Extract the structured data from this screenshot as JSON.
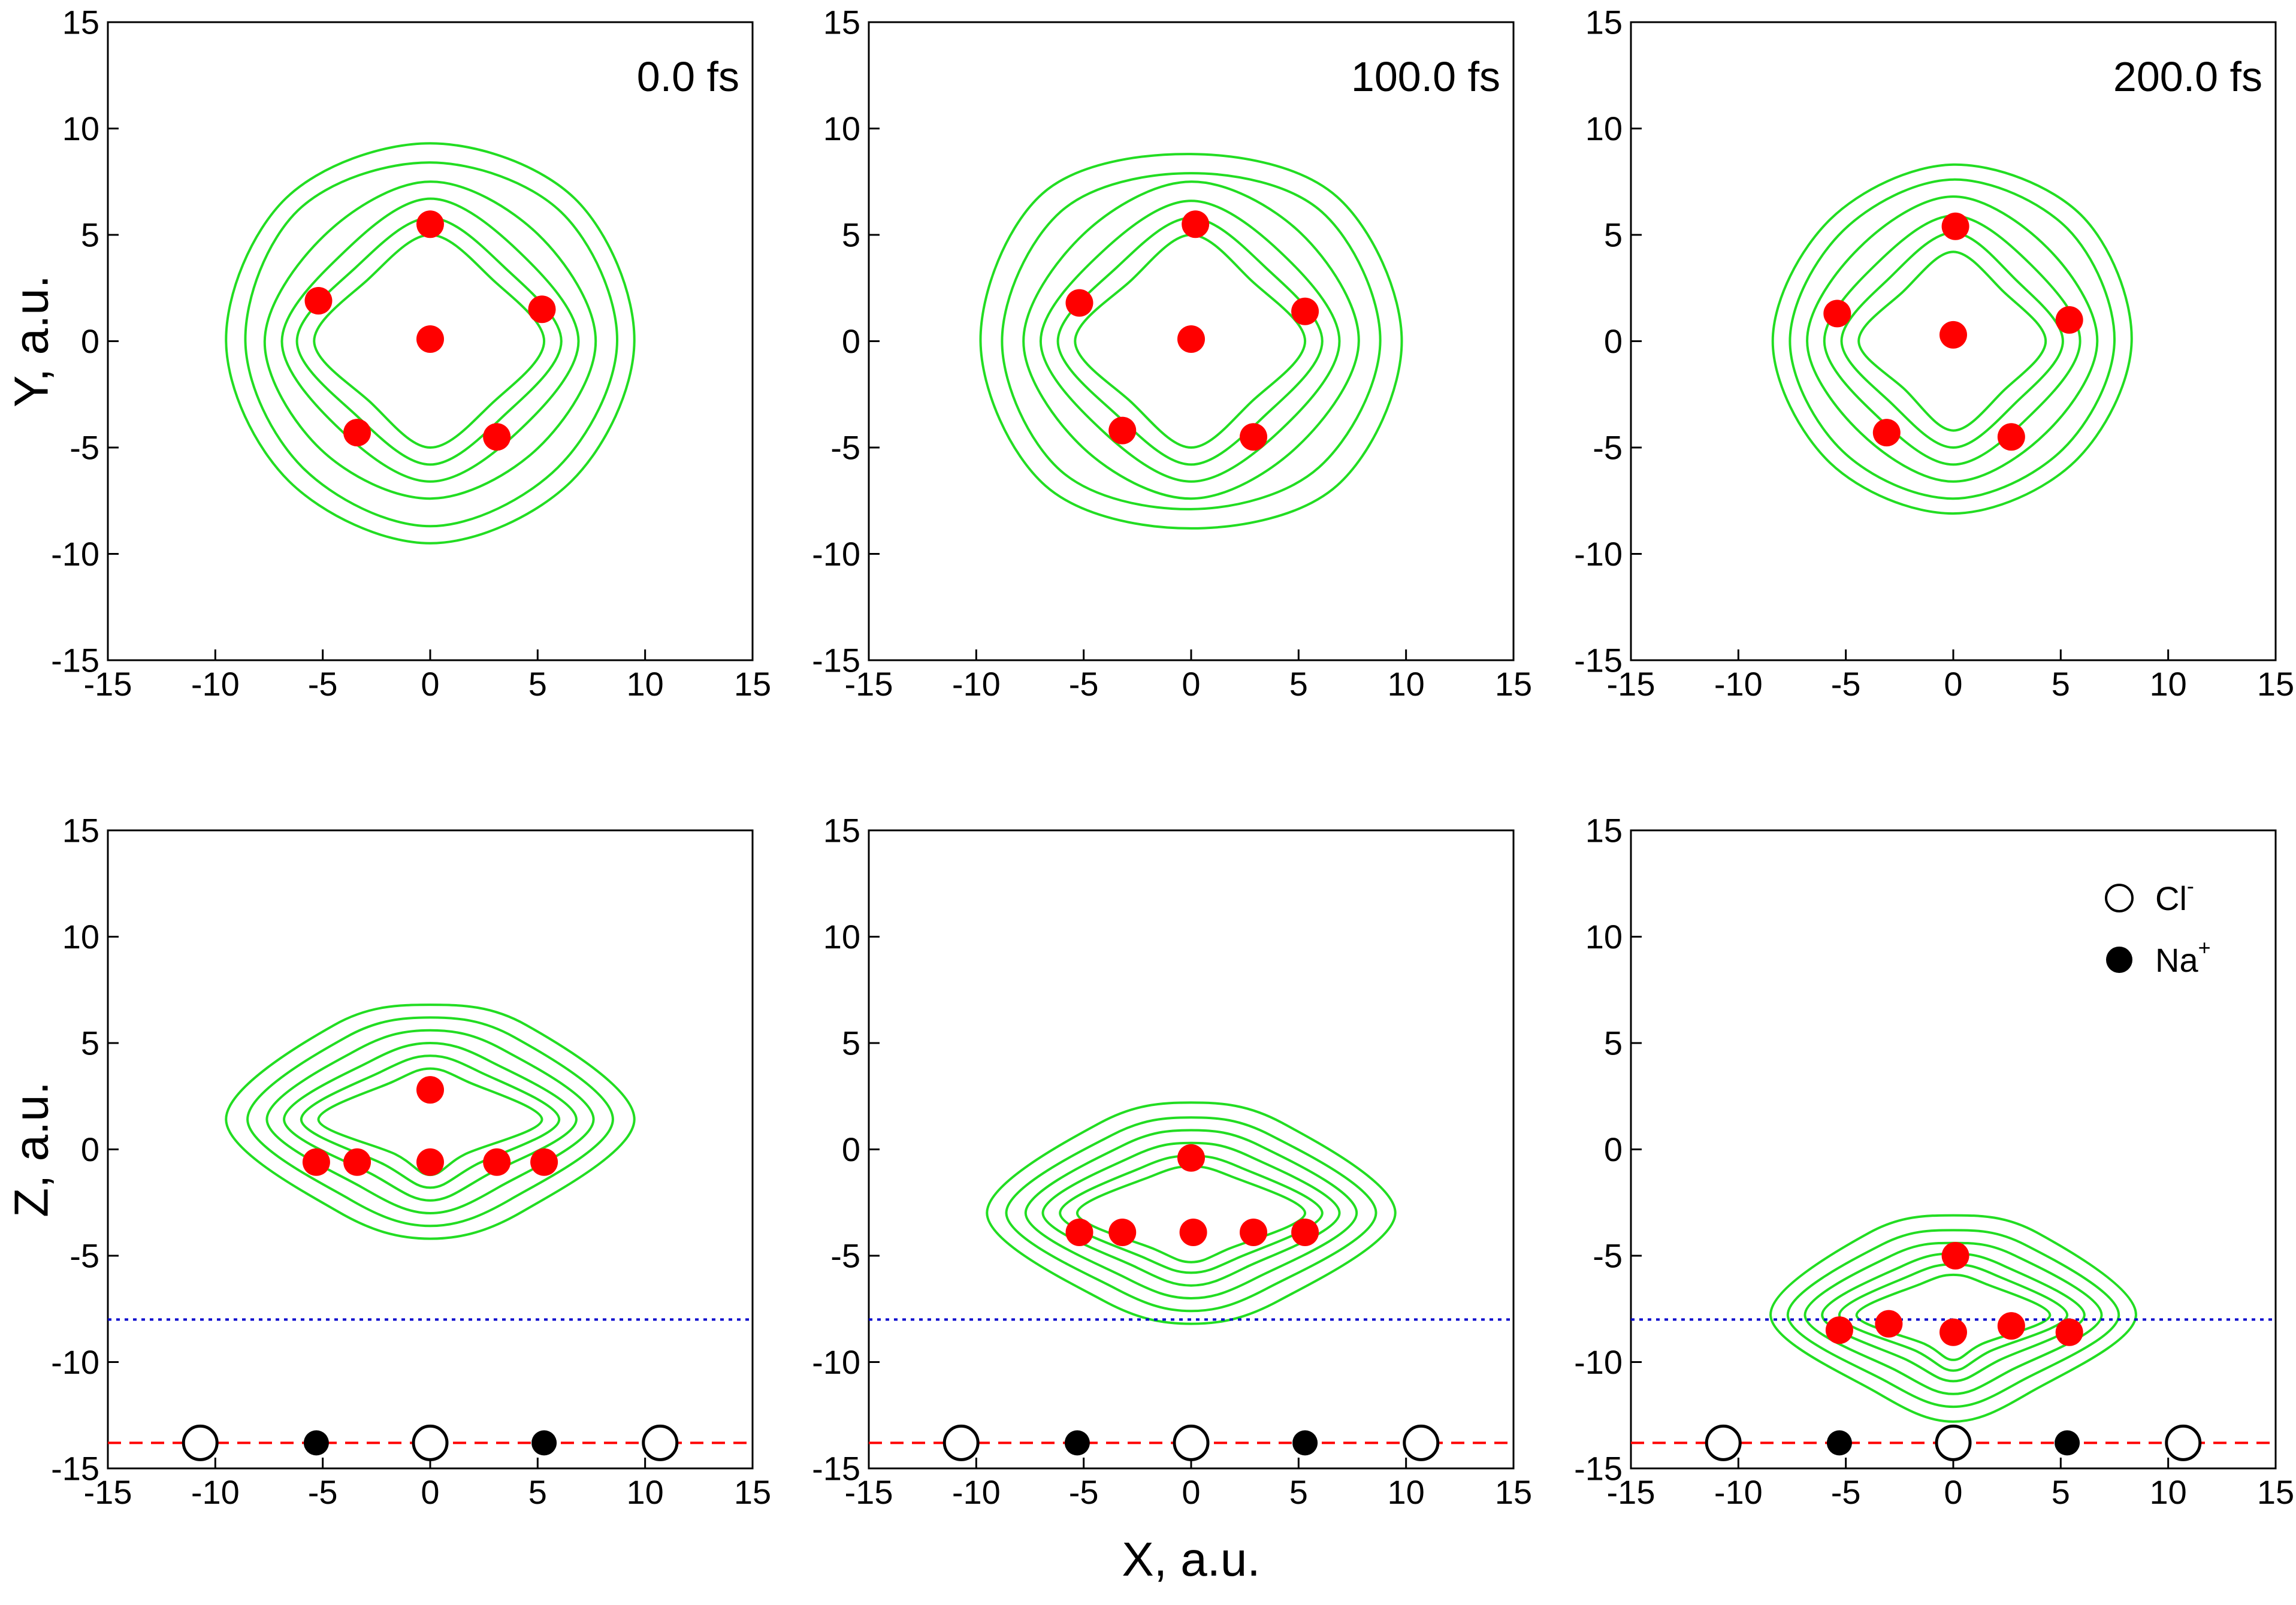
{
  "chart_data": {
    "type": "scatter",
    "title": "",
    "x_axis_title": "X, a.u.",
    "x_range": [
      -15,
      15
    ],
    "tick_values": [
      -15,
      -10,
      -5,
      0,
      5,
      10,
      15
    ],
    "tick_labels": [
      "-15",
      "-10",
      "-5",
      "0",
      "5",
      "10",
      "15"
    ],
    "rows": [
      {
        "name": "top",
        "ylabel": "Y, a.u.",
        "ylim": [
          -15,
          15
        ]
      },
      {
        "name": "bottom",
        "ylabel": "Z, a.u.",
        "ylim": [
          -15,
          15
        ]
      }
    ],
    "colors": {
      "contour": "#22dd22",
      "atom": "#ff0000",
      "chloride_fill": "#ffffff",
      "sodium_fill": "#000000",
      "surface_line": "#ff0000",
      "boundary_line": "#0000cc"
    },
    "reference_lines": {
      "surface_z": -13.8,
      "boundary_z": -8.0
    },
    "legend": {
      "position": "top-right",
      "entries": [
        {
          "symbol": "open-circle",
          "label": "Cl",
          "charge": "-"
        },
        {
          "symbol": "filled-circle",
          "label": "Na",
          "charge": "+"
        }
      ]
    },
    "substrate_ions": {
      "cl_x": [
        -10.7,
        0,
        10.7
      ],
      "na_x": [
        -5.3,
        5.3
      ],
      "z": -13.8
    },
    "columns": [
      {
        "time_label": "0.0 fs",
        "top": {
          "center": [
            0,
            0
          ],
          "contour_radii": [
            [
              9.5,
              9.5,
              9.3,
              9.5,
              9.5,
              9.3,
              9.5,
              9.3
            ],
            [
              8.7,
              8.6,
              8.4,
              8.7,
              8.6,
              8.4,
              8.7,
              8.4
            ],
            [
              7.7,
              7.1,
              7.5,
              7.0,
              7.7,
              7.2,
              7.4,
              7.1
            ],
            [
              6.9,
              5.9,
              6.7,
              5.8,
              6.9,
              5.9,
              6.6,
              5.9
            ],
            [
              6.1,
              4.9,
              5.8,
              4.9,
              6.2,
              4.9,
              5.8,
              4.9
            ],
            [
              5.3,
              4.1,
              5.0,
              4.1,
              5.4,
              4.0,
              5.0,
              4.1
            ]
          ],
          "atoms": [
            [
              0,
              5.5
            ],
            [
              -5.2,
              1.9
            ],
            [
              5.2,
              1.5
            ],
            [
              0,
              0.1
            ],
            [
              -3.4,
              -4.3
            ],
            [
              3.1,
              -4.5
            ]
          ]
        },
        "bottom": {
          "center": [
            0,
            1.4
          ],
          "contour_radii": [
            [
              9.5,
              6.3,
              5.4,
              6.3,
              9.5,
              6.1,
              5.6,
              6.1
            ],
            [
              8.5,
              5.5,
              4.8,
              5.5,
              8.5,
              5.3,
              5.0,
              5.3
            ],
            [
              7.6,
              4.7,
              4.2,
              4.7,
              7.6,
              4.5,
              4.4,
              4.5
            ],
            [
              6.8,
              3.9,
              3.6,
              3.9,
              6.8,
              3.7,
              3.8,
              3.7
            ],
            [
              6.0,
              3.2,
              3.0,
              3.2,
              6.0,
              3.0,
              3.2,
              3.0
            ],
            [
              5.2,
              2.5,
              2.4,
              2.5,
              5.2,
              2.3,
              2.6,
              2.3
            ]
          ],
          "atoms": [
            [
              0,
              2.8
            ],
            [
              -5.3,
              -0.6
            ],
            [
              -3.4,
              -0.6
            ],
            [
              0,
              -0.6
            ],
            [
              3.1,
              -0.6
            ],
            [
              5.3,
              -0.6
            ]
          ]
        }
      },
      {
        "time_label": "100.0 fs",
        "top": {
          "center": [
            0,
            0
          ],
          "contour_radii": [
            [
              9.8,
              9.6,
              8.8,
              9.8,
              9.8,
              9.6,
              8.8,
              9.6
            ],
            [
              8.8,
              8.6,
              7.9,
              8.6,
              8.8,
              8.6,
              7.9,
              8.4
            ],
            [
              7.8,
              7.2,
              7.5,
              7.1,
              7.8,
              7.1,
              7.4,
              7.0
            ],
            [
              6.9,
              5.9,
              6.6,
              5.9,
              7.0,
              5.9,
              6.6,
              5.9
            ],
            [
              6.1,
              4.9,
              5.8,
              4.9,
              6.2,
              4.9,
              5.8,
              4.9
            ],
            [
              5.3,
              4.0,
              5.0,
              4.0,
              5.4,
              4.0,
              5.0,
              4.0
            ]
          ],
          "atoms": [
            [
              0.2,
              5.5
            ],
            [
              -5.2,
              1.8
            ],
            [
              5.3,
              1.4
            ],
            [
              0,
              0.1
            ],
            [
              -3.2,
              -4.2
            ],
            [
              2.9,
              -4.5
            ]
          ]
        },
        "bottom": {
          "center": [
            0,
            -3.0
          ],
          "contour_radii": [
            [
              9.5,
              6.0,
              5.2,
              6.0,
              9.5,
              5.8,
              5.2,
              5.8
            ],
            [
              8.6,
              5.2,
              4.5,
              5.2,
              8.6,
              5.0,
              4.6,
              5.0
            ],
            [
              7.7,
              4.5,
              3.9,
              4.5,
              7.7,
              4.3,
              4.0,
              4.3
            ],
            [
              6.9,
              3.8,
              3.3,
              3.8,
              6.9,
              3.6,
              3.4,
              3.6
            ],
            [
              6.1,
              3.1,
              2.7,
              3.1,
              6.1,
              3.0,
              2.8,
              3.0
            ],
            [
              5.3,
              2.5,
              2.2,
              2.5,
              5.3,
              2.4,
              2.3,
              2.4
            ]
          ],
          "atoms": [
            [
              0,
              -0.4
            ],
            [
              -5.2,
              -3.9
            ],
            [
              -3.2,
              -3.9
            ],
            [
              0.1,
              -3.9
            ],
            [
              2.9,
              -3.9
            ],
            [
              5.3,
              -3.9
            ]
          ]
        }
      },
      {
        "time_label": "200.0 fs",
        "top": {
          "center": [
            0,
            0
          ],
          "contour_radii": [
            [
              8.3,
              8.4,
              8.3,
              8.1,
              8.4,
              8.1,
              8.1,
              8.0
            ],
            [
              7.5,
              7.5,
              7.6,
              7.3,
              7.6,
              7.3,
              7.4,
              7.2
            ],
            [
              6.7,
              6.2,
              6.8,
              6.2,
              6.8,
              6.1,
              6.6,
              6.1
            ],
            [
              5.9,
              5.1,
              5.9,
              5.1,
              6.0,
              5.0,
              5.8,
              5.0
            ],
            [
              5.1,
              4.1,
              5.1,
              4.2,
              5.2,
              4.1,
              5.0,
              4.1
            ],
            [
              4.3,
              3.3,
              4.2,
              3.3,
              4.4,
              3.2,
              4.2,
              3.3
            ]
          ],
          "atoms": [
            [
              0.1,
              5.4
            ],
            [
              -5.4,
              1.3
            ],
            [
              5.4,
              1.0
            ],
            [
              0,
              0.3
            ],
            [
              -3.1,
              -4.3
            ],
            [
              2.7,
              -4.5
            ]
          ]
        },
        "bottom": {
          "center": [
            0,
            -7.8
          ],
          "contour_radii": [
            [
              8.5,
              5.5,
              4.7,
              5.5,
              8.5,
              5.1,
              5.0,
              5.1
            ],
            [
              7.7,
              4.7,
              4.0,
              4.7,
              7.7,
              4.4,
              4.3,
              4.4
            ],
            [
              6.9,
              4.0,
              3.4,
              4.0,
              6.9,
              3.7,
              3.7,
              3.7
            ],
            [
              6.1,
              3.3,
              2.9,
              3.3,
              6.1,
              3.0,
              3.1,
              3.0
            ],
            [
              5.3,
              2.7,
              2.4,
              2.7,
              5.3,
              2.4,
              2.6,
              2.4
            ],
            [
              4.5,
              2.1,
              1.9,
              2.1,
              4.5,
              1.9,
              2.1,
              1.9
            ]
          ],
          "atoms": [
            [
              0.1,
              -5.0
            ],
            [
              -5.3,
              -8.5
            ],
            [
              -3.0,
              -8.2
            ],
            [
              0,
              -8.6
            ],
            [
              2.7,
              -8.3
            ],
            [
              5.4,
              -8.6
            ]
          ]
        }
      }
    ]
  }
}
